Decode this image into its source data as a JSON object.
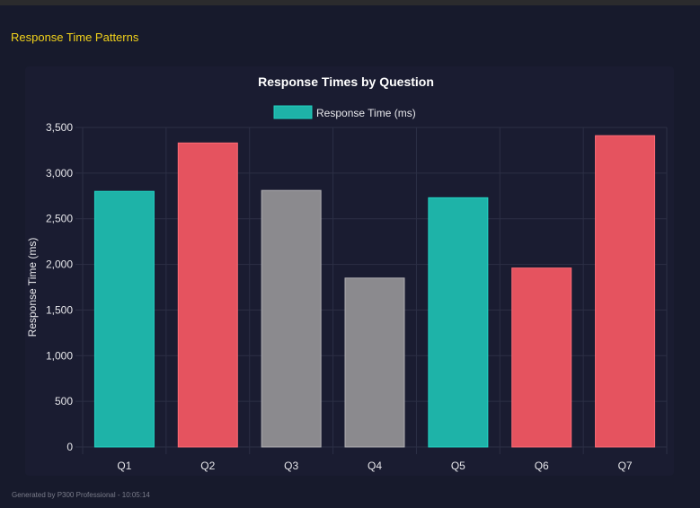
{
  "header": {
    "section_title": "Response Time Patterns"
  },
  "footer": {
    "text": "Generated by P300 Professional - 10:05:14"
  },
  "colors": {
    "teal": "#1eb3a8",
    "red": "#e5535f",
    "gray": "#8b8a8e",
    "title": "#f2d21b"
  },
  "chart_data": {
    "type": "bar",
    "title": "Response Times by Question",
    "legend": {
      "label": "Response Time (ms)",
      "placement": "top"
    },
    "xlabel": "",
    "ylabel": "Response Time (ms)",
    "ylim": [
      0,
      3500
    ],
    "yticks": [
      "0",
      "500",
      "1,000",
      "1,500",
      "2,000",
      "2,500",
      "3,000",
      "3,500"
    ],
    "grid": true,
    "categories": [
      "Q1",
      "Q2",
      "Q3",
      "Q4",
      "Q5",
      "Q6",
      "Q7"
    ],
    "values": [
      2800,
      3330,
      2810,
      1850,
      2730,
      1960,
      3410
    ],
    "bar_colors": [
      "teal",
      "red",
      "gray",
      "gray",
      "teal",
      "red",
      "red"
    ]
  }
}
